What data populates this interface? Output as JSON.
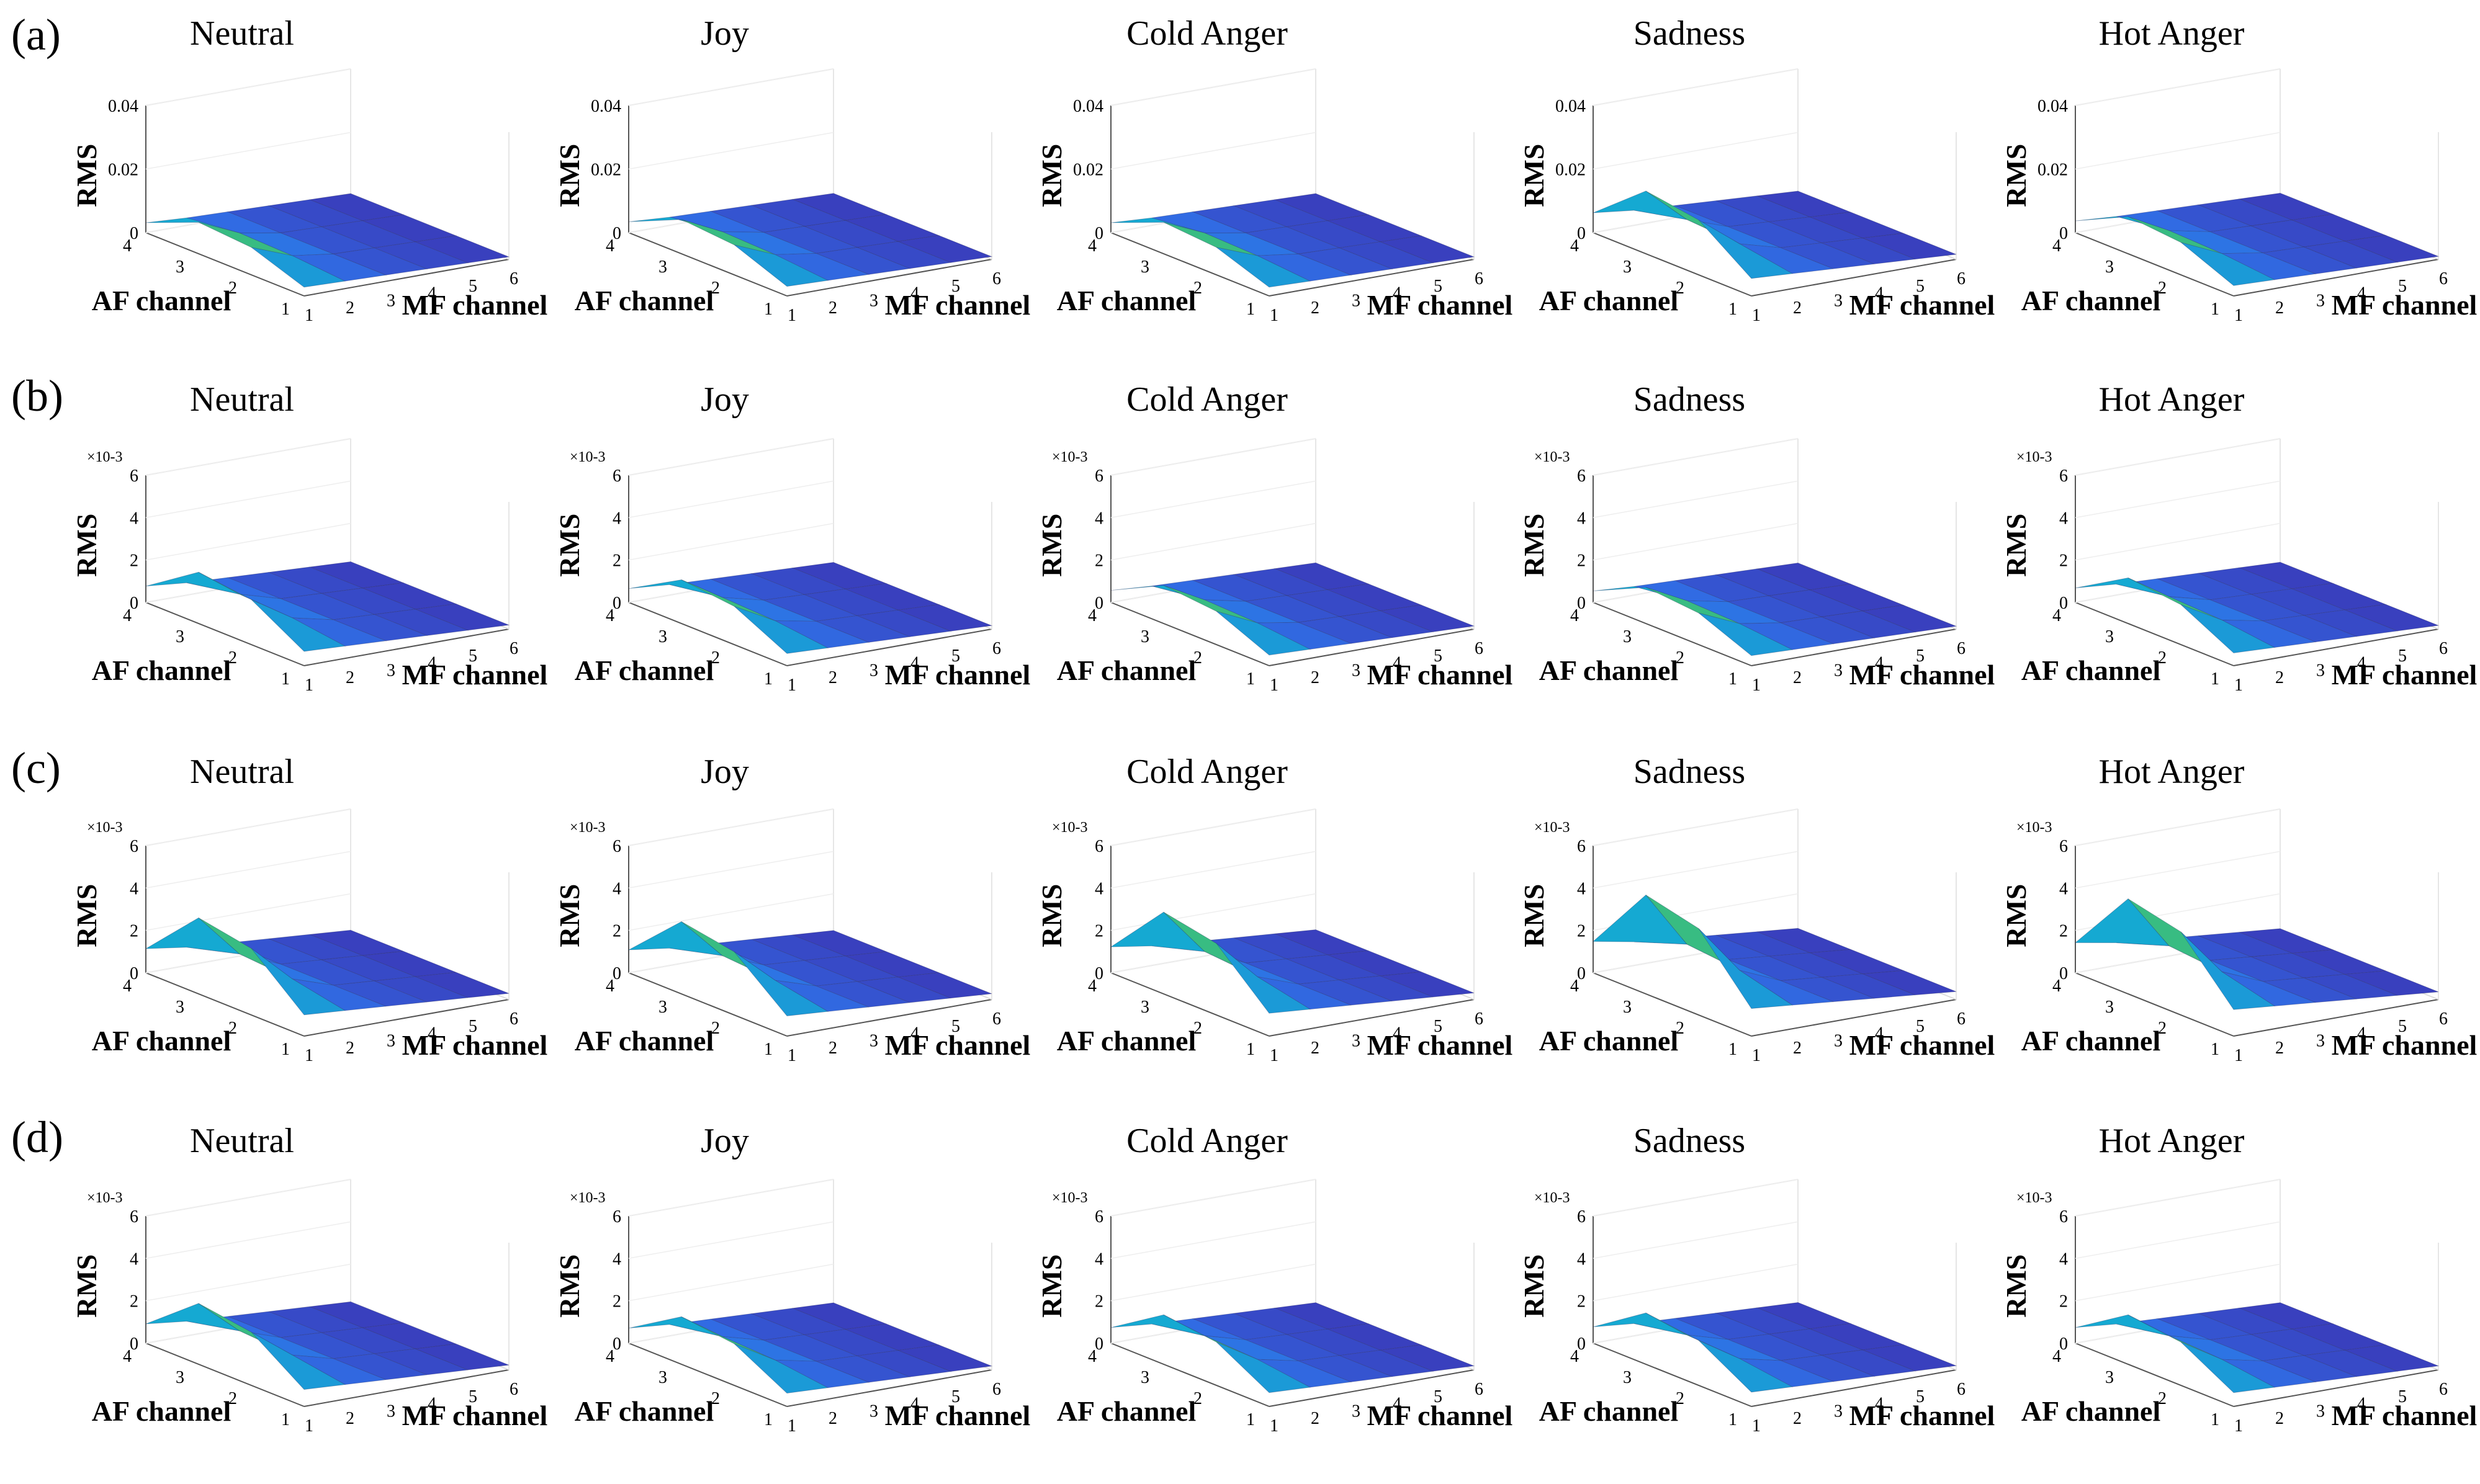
{
  "chart_data": {
    "type": "surface",
    "axes": {
      "x": "MF channel",
      "y": "AF channel",
      "z": "RMS",
      "x_ticks": [
        "1",
        "2",
        "3",
        "4",
        "5",
        "6"
      ],
      "y_ticks": [
        "1",
        "2",
        "3",
        "4"
      ]
    },
    "columns": [
      "Neutral",
      "Joy",
      "Cold Anger",
      "Sadness",
      "Hot Anger"
    ],
    "rows": [
      {
        "label": "(a)",
        "zmax": 0.04,
        "z_ticks": [
          "0",
          "0.02",
          "0.04"
        ],
        "exponent": "",
        "peaks": [
          0.011,
          0.012,
          0.011,
          0.022,
          0.013
        ]
      },
      {
        "label": "(b)",
        "zmax": 6,
        "z_ticks": [
          "0",
          "2",
          "4",
          "6"
        ],
        "exponent": "×10-3",
        "peaks": [
          2.7,
          2.3,
          2.0,
          1.9,
          2.4
        ]
      },
      {
        "label": "(c)",
        "zmax": 6,
        "z_ticks": [
          "0",
          "2",
          "4",
          "6"
        ],
        "exponent": "×10-3",
        "peaks": [
          4.0,
          3.8,
          4.3,
          5.2,
          5.0
        ]
      },
      {
        "label": "(d)",
        "zmax": 6,
        "z_ticks": [
          "0",
          "2",
          "4",
          "6"
        ],
        "exponent": "×10-3",
        "peaks": [
          3.2,
          2.5,
          2.6,
          2.7,
          2.6
        ]
      }
    ]
  }
}
